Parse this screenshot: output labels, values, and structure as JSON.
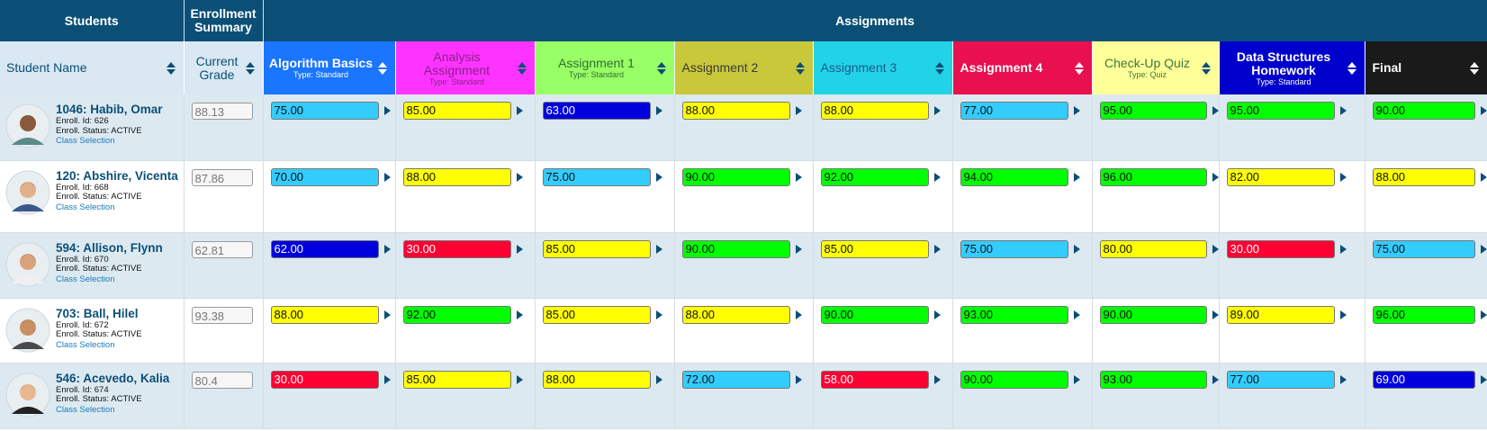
{
  "header": {
    "students": "Students",
    "enrollment": "Enrollment Summary",
    "assignments": "Assignments"
  },
  "columns": {
    "student_name": "Student Name",
    "current_grade": "Current Grade"
  },
  "assignments": [
    {
      "name": "Algorithm Basics",
      "type": "Type: Standard",
      "color": "#1a75ff",
      "text_color": "#ffffff"
    },
    {
      "name": "Analysis Assignment",
      "type": "Type: Standard",
      "color": "#ff33ff",
      "text_color": "#8a1f8a"
    },
    {
      "name": "Assignment 1",
      "type": "Type: Standard",
      "color": "#99ff66",
      "text_color": "#2f6f2f"
    },
    {
      "name": "Assignment 2",
      "color": "#c8c83a",
      "text_color": "#3a3a3a"
    },
    {
      "name": "Assignment 3",
      "color": "#22d3e8",
      "text_color": "#1a5a8a"
    },
    {
      "name": "Assignment 4",
      "color": "#e8104f",
      "text_color": "#ffffff"
    },
    {
      "name": "Check-Up Quiz",
      "type": "Type: Quiz",
      "color": "#ffff99",
      "text_color": "#3a7a3a"
    },
    {
      "name": "Data Structures Homework",
      "type": "Type: Standard",
      "color": "#0000cc",
      "text_color": "#ffffff"
    },
    {
      "name": "Final",
      "color": "#1a1a1a",
      "text_color": "#ffffff"
    }
  ],
  "students": [
    {
      "name": "1046: Habib, Omar",
      "enroll_id": "Enroll. Id: 626",
      "status": "Enroll. Status: ACTIVE",
      "link": "Class Selection",
      "current_grade": "88.13",
      "grades": [
        {
          "value": "75.00",
          "color": "#33ccff"
        },
        {
          "value": "85.00",
          "color": "#ffff00"
        },
        {
          "value": "63.00",
          "color": "#0000dd"
        },
        {
          "value": "88.00",
          "color": "#ffff00"
        },
        {
          "value": "88.00",
          "color": "#ffff00"
        },
        {
          "value": "77.00",
          "color": "#33ccff"
        },
        {
          "value": "95.00",
          "color": "#00ff00"
        },
        {
          "value": "95.00",
          "color": "#00ff00"
        },
        {
          "value": "90.00",
          "color": "#00ff00"
        }
      ]
    },
    {
      "name": "120: Abshire, Vicenta",
      "enroll_id": "Enroll. Id: 668",
      "status": "Enroll. Status: ACTIVE",
      "link": "Class Selection",
      "current_grade": "87.86",
      "grades": [
        {
          "value": "70.00",
          "color": "#33ccff"
        },
        {
          "value": "88.00",
          "color": "#ffff00"
        },
        {
          "value": "75.00",
          "color": "#33ccff"
        },
        {
          "value": "90.00",
          "color": "#00ff00"
        },
        {
          "value": "92.00",
          "color": "#00ff00"
        },
        {
          "value": "94.00",
          "color": "#00ff00"
        },
        {
          "value": "96.00",
          "color": "#00ff00"
        },
        {
          "value": "82.00",
          "color": "#ffff00"
        },
        {
          "value": "88.00",
          "color": "#ffff00"
        }
      ]
    },
    {
      "name": "594: Allison, Flynn",
      "enroll_id": "Enroll. Id: 670",
      "status": "Enroll. Status: ACTIVE",
      "link": "Class Selection",
      "current_grade": "62.81",
      "grades": [
        {
          "value": "62.00",
          "color": "#0000dd"
        },
        {
          "value": "30.00",
          "color": "#ff0033"
        },
        {
          "value": "85.00",
          "color": "#ffff00"
        },
        {
          "value": "90.00",
          "color": "#00ff00"
        },
        {
          "value": "85.00",
          "color": "#ffff00"
        },
        {
          "value": "75.00",
          "color": "#33ccff"
        },
        {
          "value": "80.00",
          "color": "#ffff00"
        },
        {
          "value": "30.00",
          "color": "#ff0033"
        },
        {
          "value": "75.00",
          "color": "#33ccff"
        }
      ]
    },
    {
      "name": "703: Ball, Hilel",
      "enroll_id": "Enroll. Id: 672",
      "status": "Enroll. Status: ACTIVE",
      "link": "Class Selection",
      "current_grade": "93.38",
      "grades": [
        {
          "value": "88.00",
          "color": "#ffff00"
        },
        {
          "value": "92.00",
          "color": "#00ff00"
        },
        {
          "value": "85.00",
          "color": "#ffff00"
        },
        {
          "value": "88.00",
          "color": "#ffff00"
        },
        {
          "value": "90.00",
          "color": "#00ff00"
        },
        {
          "value": "93.00",
          "color": "#00ff00"
        },
        {
          "value": "90.00",
          "color": "#00ff00"
        },
        {
          "value": "89.00",
          "color": "#ffff00"
        },
        {
          "value": "96.00",
          "color": "#00ff00"
        }
      ]
    },
    {
      "name": "546: Acevedo, Kalia",
      "enroll_id": "Enroll. Id: 674",
      "status": "Enroll. Status: ACTIVE",
      "link": "Class Selection",
      "current_grade": "80.4",
      "grades": [
        {
          "value": "30.00",
          "color": "#ff0033"
        },
        {
          "value": "85.00",
          "color": "#ffff00"
        },
        {
          "value": "88.00",
          "color": "#ffff00"
        },
        {
          "value": "72.00",
          "color": "#33ccff"
        },
        {
          "value": "58.00",
          "color": "#ff0033"
        },
        {
          "value": "90.00",
          "color": "#00ff00"
        },
        {
          "value": "93.00",
          "color": "#00ff00"
        },
        {
          "value": "77.00",
          "color": "#33ccff"
        },
        {
          "value": "69.00",
          "color": "#0000dd"
        }
      ]
    }
  ]
}
